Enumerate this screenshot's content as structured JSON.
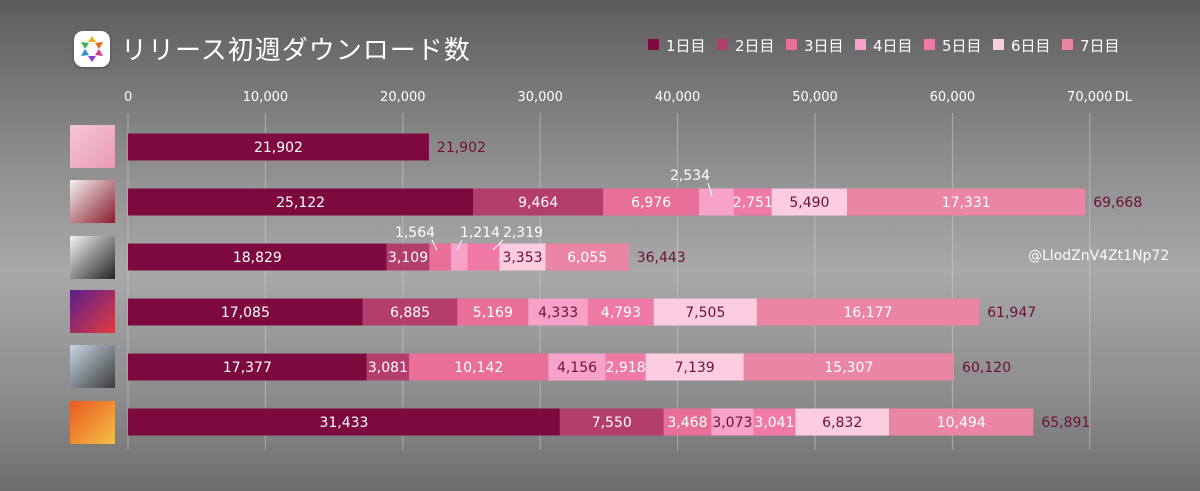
{
  "title": "リリース初週ダウンロード数",
  "watermark": "@LlodZnV4Zt1Np72",
  "legend": [
    {
      "label": "1日目",
      "color": "#7d0a3f"
    },
    {
      "label": "2日目",
      "color": "#b43e6b"
    },
    {
      "label": "3日目",
      "color": "#e76f98"
    },
    {
      "label": "4日目",
      "color": "#f7a3c9"
    },
    {
      "label": "5日目",
      "color": "#f07aa6"
    },
    {
      "label": "6日目",
      "color": "#fccde0"
    },
    {
      "label": "7日目",
      "color": "#eb85a4"
    }
  ],
  "chart_data": {
    "type": "bar",
    "orientation": "horizontal",
    "stacked": true,
    "title": "リリース初週ダウンロード数",
    "unit": "DL",
    "xlim": [
      0,
      70000
    ],
    "ticks": [
      0,
      10000,
      20000,
      30000,
      40000,
      50000,
      60000,
      70000
    ],
    "tick_labels": [
      "0",
      "10,000",
      "20,000",
      "30,000",
      "40,000",
      "50,000",
      "60,000",
      "70,000"
    ],
    "grid": true,
    "legend_position": "top-right",
    "series": [
      {
        "name": "1日目",
        "values": [
          21902,
          25122,
          18829,
          17085,
          17377,
          31433
        ]
      },
      {
        "name": "2日目",
        "values": [
          0,
          9464,
          3109,
          6885,
          3081,
          7550
        ]
      },
      {
        "name": "3日目",
        "values": [
          0,
          6976,
          1564,
          5169,
          10142,
          3468
        ]
      },
      {
        "name": "4日目",
        "values": [
          0,
          2534,
          1214,
          4333,
          4156,
          3073
        ]
      },
      {
        "name": "5日目",
        "values": [
          0,
          2751,
          2319,
          4793,
          2918,
          3041
        ]
      },
      {
        "name": "6日目",
        "values": [
          0,
          5490,
          3353,
          7505,
          7139,
          6832
        ]
      },
      {
        "name": "7日目",
        "values": [
          0,
          17331,
          6055,
          16177,
          15307,
          10494
        ]
      }
    ],
    "totals": [
      21902,
      69668,
      36443,
      61947,
      60120,
      65891
    ],
    "segment_labels": [
      [
        "21,902",
        "",
        "",
        "",
        "",
        "",
        ""
      ],
      [
        "25,122",
        "9,464",
        "6,976",
        "2,534",
        "2,751",
        "5,490",
        "17,331"
      ],
      [
        "18,829",
        "3,109",
        "1,564",
        "1,214",
        "2,319",
        "3,353",
        "6,055"
      ],
      [
        "17,085",
        "6,885",
        "5,169",
        "4,333",
        "4,793",
        "7,505",
        "16,177"
      ],
      [
        "17,377",
        "3,081",
        "10,142",
        "4,156",
        "2,918",
        "7,139",
        "15,307"
      ],
      [
        "31,433",
        "7,550",
        "3,468",
        "3,073",
        "3,041",
        "6,832",
        "10,494"
      ]
    ],
    "total_labels": [
      "21,902",
      "69,668",
      "36,443",
      "61,947",
      "60,120",
      "65,891"
    ]
  },
  "covers": [
    {
      "icon": "pink-flower-cover-art",
      "colors": [
        "#f6c6d8",
        "#e89ab8"
      ]
    },
    {
      "icon": "red-brain-cover-art",
      "colors": [
        "#f2f2f2",
        "#8a1b2c"
      ]
    },
    {
      "icon": "group-photo-cover-art",
      "colors": [
        "#f4f4f4",
        "#222222"
      ]
    },
    {
      "icon": "purple-logo-cover-art",
      "colors": [
        "#5a1f8e",
        "#e23b3b"
      ]
    },
    {
      "icon": "group-street-cover-art",
      "colors": [
        "#c8d6e4",
        "#3b3b3b"
      ]
    },
    {
      "icon": "orange-graffiti-cover-art",
      "colors": [
        "#e85a1e",
        "#f5c046"
      ]
    }
  ]
}
